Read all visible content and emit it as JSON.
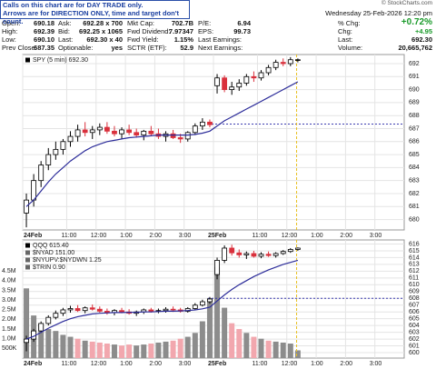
{
  "notice": [
    "Calls on this chart are for DAY TRADE only.",
    "Arrows are for DIRECTION ONLY, time and target don't count."
  ],
  "header": {
    "date": "Wednesday  25-Feb-2026  12:20 pm",
    "copyright": "© StockCharts.com",
    "stats": [
      [
        [
          "Open:",
          "690.18"
        ],
        [
          "Ask:",
          "692.28 x 700"
        ],
        [
          "Mkt Cap:",
          "702.7B"
        ],
        [
          "P/E:",
          "6.94"
        ]
      ],
      [
        [
          "High:",
          "692.39"
        ],
        [
          "Bid:",
          "692.25 x 1065"
        ],
        [
          "Fwd Dividend:",
          "7.97347"
        ],
        [
          "EPS:",
          "99.73"
        ]
      ],
      [
        [
          "Low:",
          "690.10"
        ],
        [
          "Last:",
          "692.30 x 40"
        ],
        [
          "Fwd Yield:",
          "1.15%"
        ],
        [
          "Last Earnings:",
          ""
        ]
      ],
      [
        [
          "Prev Close:",
          "687.35"
        ],
        [
          "Optionable:",
          "yes"
        ],
        [
          "SCTR (ETF):",
          "52.9"
        ],
        [
          "Next Earnings:",
          ""
        ]
      ]
    ],
    "quote": [
      [
        "% Chg:",
        "+0.72%"
      ],
      [
        "Chg:",
        "+4.95"
      ],
      [
        "Last:",
        "692.30"
      ],
      [
        "Volume:",
        "20,665,762"
      ]
    ]
  },
  "chart_data": [
    {
      "type": "candlestick",
      "legend": [
        "SPY (5 min) 692.30"
      ],
      "x": [
        7.5,
        22.5,
        37.5,
        52.5,
        67.5,
        82.5,
        97.5,
        112.5,
        127.5,
        142.5,
        157.5,
        172.5,
        187.5,
        202.5,
        217.5,
        232.5,
        247.5,
        262.5,
        277.5,
        292.5,
        307.5,
        322.5,
        337.5,
        352.5,
        367.5,
        382.5,
        397.5,
        412.5,
        427.5,
        442.5,
        457.5,
        472.5,
        487.5,
        502.5,
        517.5,
        532.5,
        547.5,
        562.5
      ],
      "open": [
        680.5,
        681.5,
        683,
        684.2,
        685,
        685.4,
        686,
        686.4,
        686.9,
        686.7,
        686.9,
        687.1,
        686.8,
        686.6,
        686.9,
        686.7,
        686.5,
        686.8,
        686.6,
        686.4,
        686.6,
        686.3,
        686.2,
        686.7,
        687.2,
        687.5,
        690.3,
        690.9,
        690,
        690.2,
        690.5,
        691,
        690.9,
        691.3,
        691.7,
        692.1,
        692,
        692.3
      ],
      "high": [
        682,
        683.5,
        684.5,
        685.5,
        686,
        686.2,
        686.8,
        687.3,
        687.5,
        687.2,
        687.4,
        687.5,
        687.2,
        687.1,
        687.3,
        687,
        686.9,
        687.2,
        687,
        686.8,
        686.9,
        686.6,
        686.8,
        687.4,
        687.8,
        687.7,
        691.2,
        691.1,
        690.6,
        690.8,
        691.2,
        691.4,
        691.5,
        691.9,
        692.3,
        692.4,
        692.5,
        692.4
      ],
      "low": [
        679.4,
        681,
        682.5,
        683.8,
        684.6,
        685,
        685.6,
        686,
        686.4,
        686.2,
        686.5,
        686.6,
        686.4,
        686.2,
        686.5,
        686.3,
        686.1,
        686.4,
        686.2,
        686,
        686.2,
        685.9,
        686,
        686.5,
        686.9,
        687.1,
        689.7,
        689.8,
        689.6,
        689.9,
        690.3,
        690.6,
        690.7,
        691.1,
        691.5,
        691.8,
        691.8,
        692.1
      ],
      "close": [
        681.5,
        683,
        684.2,
        685,
        685.4,
        686,
        686.4,
        686.9,
        686.7,
        686.9,
        687.1,
        686.8,
        686.6,
        686.9,
        686.7,
        686.5,
        686.8,
        686.6,
        686.4,
        686.6,
        686.3,
        686.2,
        686.7,
        687.2,
        687.5,
        687.3,
        690.9,
        690,
        690.2,
        690.5,
        691,
        690.9,
        691.3,
        691.7,
        692.1,
        692,
        692.3,
        692.3
      ],
      "ma": {
        "color": "#2d2d9a",
        "values": [
          681,
          681.5,
          682.2,
          682.9,
          683.5,
          684,
          684.5,
          684.9,
          685.3,
          685.6,
          685.8,
          686,
          686.1,
          686.2,
          686.3,
          686.35,
          686.4,
          686.45,
          686.5,
          686.5,
          686.5,
          686.5,
          686.5,
          686.55,
          686.65,
          686.8,
          687.2,
          687.6,
          687.9,
          688.2,
          688.5,
          688.8,
          689.1,
          689.4,
          689.7,
          690,
          690.3,
          690.6
        ]
      },
      "up_color": "#000000",
      "down_color": "#d9303c",
      "reference_line": 687.35,
      "marker_x": 560,
      "xlim": [
        0,
        780
      ],
      "xticks": [
        {
          "value": 0,
          "label": "24Feb"
        },
        {
          "value": 90,
          "label": "11:00"
        },
        {
          "value": 150,
          "label": "12:00"
        },
        {
          "value": 210,
          "label": "1:00"
        },
        {
          "value": 270,
          "label": "2:00"
        },
        {
          "value": 330,
          "label": "3:00"
        },
        {
          "value": 390,
          "label": "25Feb"
        },
        {
          "value": 480,
          "label": "11:00"
        },
        {
          "value": 540,
          "label": "12:00"
        },
        {
          "value": 600,
          "label": "1:00"
        },
        {
          "value": 660,
          "label": "2:00"
        },
        {
          "value": 720,
          "label": "3:00"
        }
      ],
      "ylim": [
        679.2,
        692.7
      ],
      "yticks": [
        680,
        681,
        682,
        683,
        684,
        685,
        686,
        687,
        688,
        689,
        690,
        691,
        692
      ],
      "grid": true
    },
    {
      "type": "candlestick",
      "legend": [
        "QQQ 615.40",
        "$NYAD 151.00",
        "$NYUPV:$NYDWN 1.25",
        "$TRIN 0.90"
      ],
      "x": [
        7.5,
        22.5,
        37.5,
        52.5,
        67.5,
        82.5,
        97.5,
        112.5,
        127.5,
        142.5,
        157.5,
        172.5,
        187.5,
        202.5,
        217.5,
        232.5,
        247.5,
        262.5,
        277.5,
        292.5,
        307.5,
        322.5,
        337.5,
        352.5,
        367.5,
        382.5,
        397.5,
        412.5,
        427.5,
        442.5,
        457.5,
        472.5,
        487.5,
        502.5,
        517.5,
        532.5,
        547.5,
        562.5
      ],
      "open": [
        601.5,
        602,
        603.2,
        604.3,
        605.2,
        605.8,
        606.3,
        606.5,
        606.2,
        606.6,
        606.4,
        606.1,
        605.9,
        606.2,
        606,
        605.8,
        606,
        606.3,
        606.1,
        606.2,
        606.4,
        606.3,
        606.1,
        606.5,
        607,
        607.5,
        611.5,
        613.6,
        615.4,
        614.7,
        614.4,
        614.6,
        614.2,
        614.5,
        614.3,
        614.6,
        614.9,
        615.2
      ],
      "high": [
        602.5,
        603.5,
        604.6,
        605.5,
        606.2,
        606.6,
        606.9,
        607,
        606.8,
        607.1,
        606.8,
        606.5,
        606.4,
        606.6,
        606.4,
        606.2,
        606.5,
        606.6,
        606.5,
        606.7,
        606.8,
        606.6,
        606.7,
        607.3,
        607.8,
        608.2,
        614,
        615.8,
        615.9,
        615.2,
        614.9,
        615,
        614.8,
        614.9,
        614.8,
        615.1,
        615.4,
        615.5
      ],
      "low": [
        600.2,
        601.6,
        602.9,
        604,
        604.9,
        605.4,
        605.9,
        606,
        605.8,
        606.2,
        605.9,
        605.6,
        605.5,
        605.8,
        605.6,
        605.4,
        605.7,
        605.9,
        605.8,
        605.9,
        606,
        605.9,
        605.9,
        606.3,
        606.8,
        607.2,
        610.8,
        613.2,
        614.3,
        614,
        613.8,
        614,
        613.9,
        614.1,
        614,
        614.4,
        614.7,
        615
      ],
      "close": [
        602,
        603.2,
        604.3,
        605.2,
        605.8,
        606.3,
        606.5,
        606.2,
        606.6,
        606.4,
        606.1,
        605.9,
        606.2,
        606,
        605.8,
        606,
        606.3,
        606.1,
        606.2,
        606.4,
        606.3,
        606.1,
        606.5,
        607,
        607.5,
        607.9,
        613.6,
        615.4,
        614.7,
        614.4,
        614.6,
        614.2,
        614.5,
        614.3,
        614.6,
        614.9,
        615.2,
        615.4
      ],
      "ma": {
        "color": "#2d2d9a",
        "values": [
          602,
          602.4,
          603,
          603.6,
          604.1,
          604.6,
          605,
          605.3,
          605.5,
          605.7,
          605.8,
          605.85,
          605.9,
          605.9,
          605.95,
          605.95,
          606,
          606,
          606.05,
          606.1,
          606.1,
          606.15,
          606.2,
          606.3,
          606.45,
          606.7,
          607.6,
          608.5,
          609.3,
          610,
          610.6,
          611.2,
          611.7,
          612.2,
          612.6,
          613,
          613.3,
          613.6
        ]
      },
      "volume": {
        "axis": "y2",
        "up_color": "#8c8c8c",
        "down_color": "#f2a7ae",
        "values": [
          3600000,
          2200000,
          1800000,
          1500000,
          1400000,
          1200000,
          1100000,
          1000000,
          900000,
          850000,
          800000,
          750000,
          700000,
          650000,
          700000,
          650000,
          700000,
          750000,
          800000,
          850000,
          900000,
          1000000,
          1100000,
          1300000,
          1900000,
          3100000,
          4700000,
          2600000,
          1800000,
          1500000,
          1300000,
          1100000,
          1000000,
          900000,
          850000,
          800000,
          750000,
          400000
        ]
      },
      "up_color": "#000000",
      "down_color": "#d9303c",
      "reference_line": 608,
      "marker_x": 560,
      "xlim": [
        0,
        780
      ],
      "xticks": [
        {
          "value": 0,
          "label": "24Feb"
        },
        {
          "value": 90,
          "label": "11:00"
        },
        {
          "value": 150,
          "label": "12:00"
        },
        {
          "value": 210,
          "label": "1:00"
        },
        {
          "value": 270,
          "label": "2:00"
        },
        {
          "value": 330,
          "label": "3:00"
        },
        {
          "value": 390,
          "label": "25Feb"
        },
        {
          "value": 480,
          "label": "11:00"
        },
        {
          "value": 540,
          "label": "12:00"
        },
        {
          "value": 600,
          "label": "1:00"
        },
        {
          "value": 660,
          "label": "2:00"
        },
        {
          "value": 720,
          "label": "3:00"
        }
      ],
      "ylim": [
        599.2,
        616.6
      ],
      "yticks": [
        600,
        601,
        602,
        603,
        604,
        605,
        606,
        607,
        608,
        609,
        610,
        611,
        612,
        613,
        614,
        615,
        616
      ],
      "y2lim": [
        0,
        6100000
      ],
      "y2ticks": [
        {
          "value": 500000,
          "label": "500K"
        },
        {
          "value": 1000000,
          "label": "1.0M"
        },
        {
          "value": 1500000,
          "label": "1.5M"
        },
        {
          "value": 2000000,
          "label": "2.0M"
        },
        {
          "value": 2500000,
          "label": "2.5M"
        },
        {
          "value": 3000000,
          "label": "3.0M"
        },
        {
          "value": 3500000,
          "label": "3.5M"
        },
        {
          "value": 4000000,
          "label": "4.0M"
        },
        {
          "value": 4500000,
          "label": "4.5M"
        }
      ],
      "grid": true
    }
  ]
}
